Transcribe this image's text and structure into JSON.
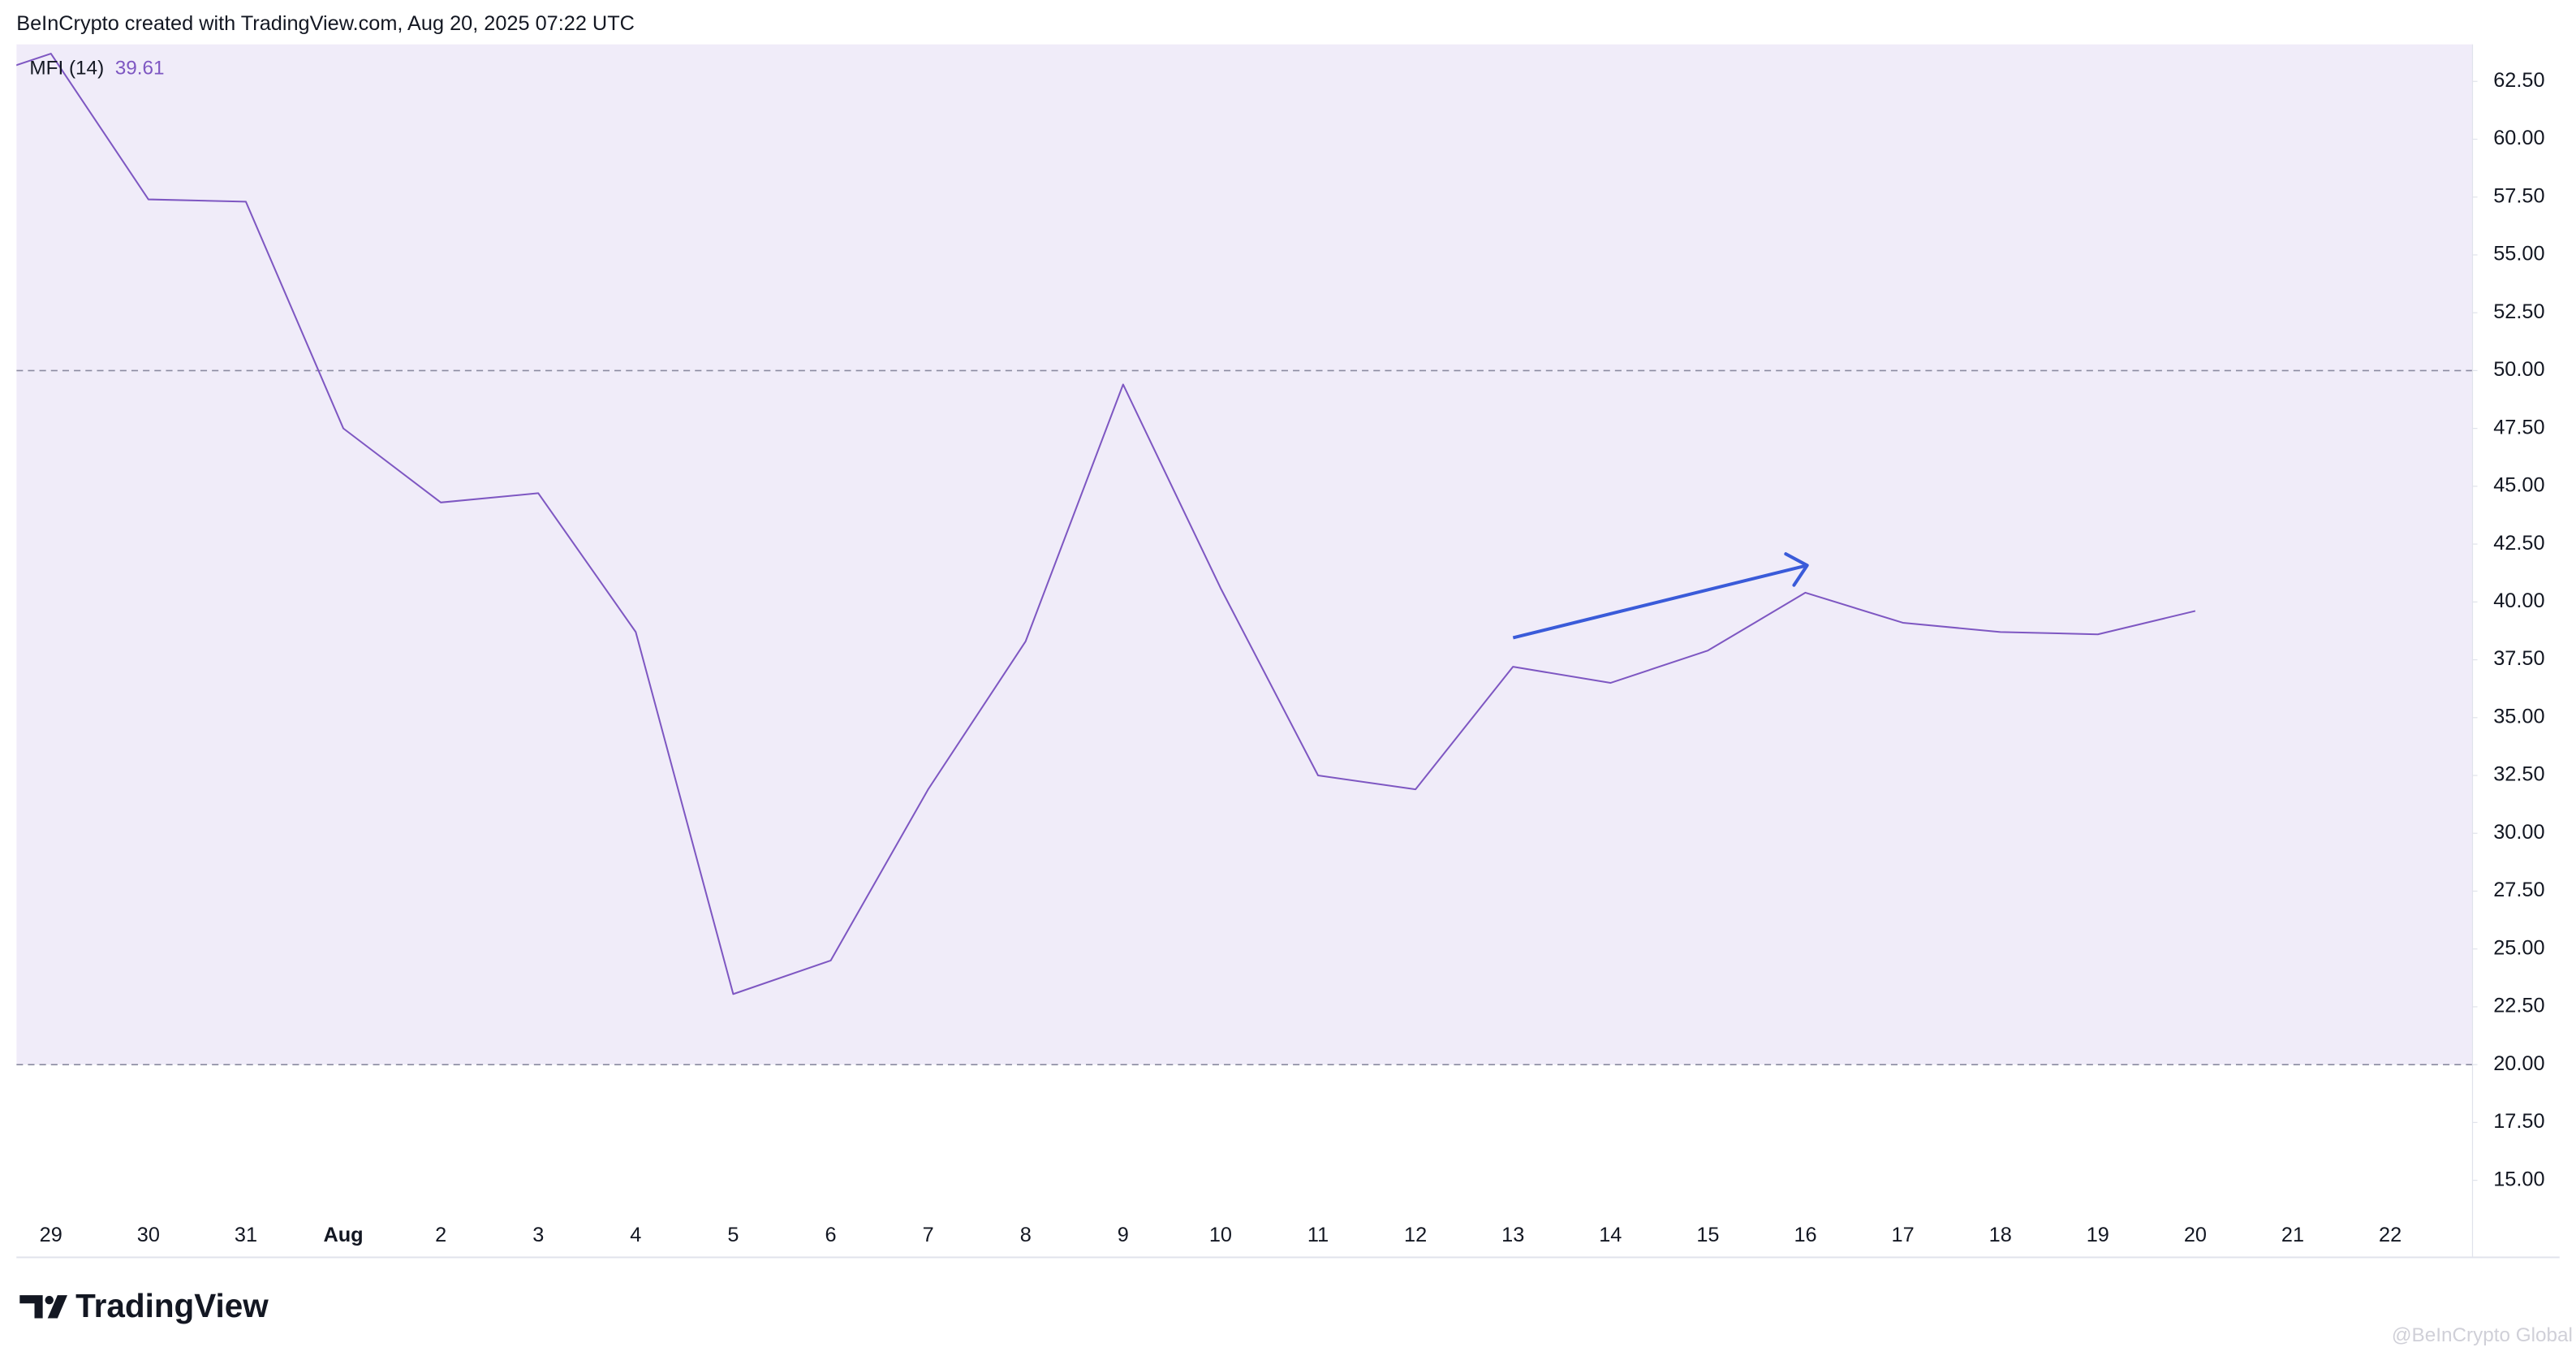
{
  "chart_data": {
    "type": "line",
    "header": "BeInCrypto created with TradingView.com, Aug 20, 2025 07:22 UTC",
    "indicator_name": "MFI (14)",
    "categories": [
      null,
      "29",
      "30",
      "31",
      "Aug",
      "2",
      "3",
      "4",
      "5",
      "6",
      "7",
      "8",
      "9",
      "10",
      "11",
      "12",
      "13",
      "14",
      "15",
      "16",
      "17",
      "18",
      "19",
      "20",
      "21",
      "22"
    ],
    "values": [
      62.3,
      63.7,
      57.4,
      57.3,
      47.5,
      44.3,
      44.7,
      38.7,
      23.05,
      24.5,
      31.9,
      38.3,
      49.4,
      40.6,
      32.5,
      31.9,
      37.2,
      36.5,
      37.9,
      40.4,
      39.1,
      38.7,
      38.6,
      39.61,
      null,
      null
    ],
    "color": "#7e57c2",
    "ylim": [
      13.8,
      64.1
    ],
    "yticks": [
      {
        "value": 15,
        "label": "15.00"
      },
      {
        "value": 17.5,
        "label": "17.50"
      },
      {
        "value": 20,
        "label": "20.00"
      },
      {
        "value": 22.5,
        "label": "22.50"
      },
      {
        "value": 25,
        "label": "25.00"
      },
      {
        "value": 27.5,
        "label": "27.50"
      },
      {
        "value": 30,
        "label": "30.00"
      },
      {
        "value": 32.5,
        "label": "32.50"
      },
      {
        "value": 35,
        "label": "35.00"
      },
      {
        "value": 37.5,
        "label": "37.50"
      },
      {
        "value": 40,
        "label": "40.00"
      },
      {
        "value": 42.5,
        "label": "42.50"
      },
      {
        "value": 45,
        "label": "45.00"
      },
      {
        "value": 47.5,
        "label": "47.50"
      },
      {
        "value": 50,
        "label": "50.00"
      },
      {
        "value": 52.5,
        "label": "52.50"
      },
      {
        "value": 55,
        "label": "55.00"
      },
      {
        "value": 57.5,
        "label": "57.50"
      },
      {
        "value": 60,
        "label": "60.00"
      },
      {
        "value": 62.5,
        "label": "62.50"
      }
    ],
    "reference_lines": [
      20,
      50
    ],
    "band_color": "#f0ecf9",
    "logo": "TradingView",
    "watermark": "@BeInCrypto Global"
  }
}
